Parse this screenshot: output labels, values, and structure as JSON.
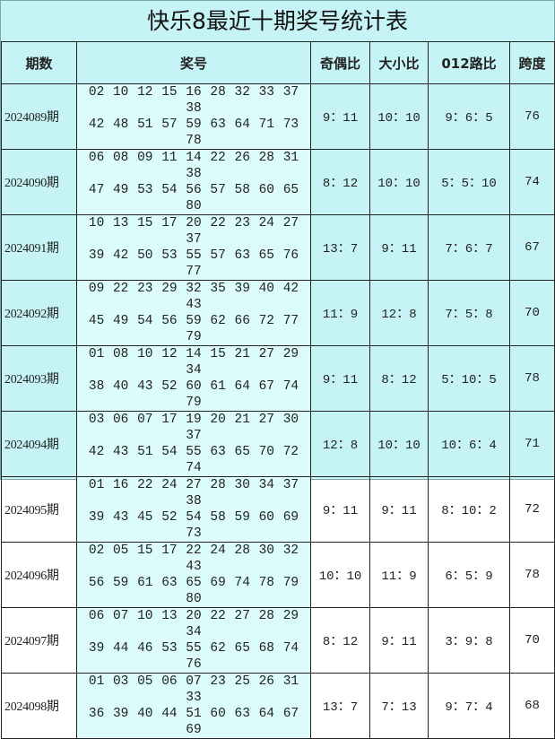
{
  "title": "快乐8最近十期奖号统计表",
  "headers": [
    "期数",
    "奖号",
    "奇偶比",
    "大小比",
    "012路比",
    "跨度"
  ],
  "colors": {
    "background": "#c6f4f6",
    "number_cell": "#dcfcfc",
    "border": "#222222"
  },
  "rows": [
    {
      "period": "2024089期",
      "line1": "02 10 12 15 16 28 32 33 37 38",
      "line2": "42 48 51 57 59 63 64 71 73 78",
      "odd_even": "9：11",
      "big_small": "10：10",
      "road012": "9：6：5",
      "span": "76"
    },
    {
      "period": "2024090期",
      "line1": "06 08 09 11 14 22 26 28 31 38",
      "line2": "47 49 53 54 56 57 58 60 65 80",
      "odd_even": "8：12",
      "big_small": "10：10",
      "road012": "5：5：10",
      "span": "74"
    },
    {
      "period": "2024091期",
      "line1": "10 13 15 17 20 22 23 24 27 37",
      "line2": "39 42 50 53 55 57 63 65 76 77",
      "odd_even": "13：7",
      "big_small": "9：11",
      "road012": "7：6：7",
      "span": "67"
    },
    {
      "period": "2024092期",
      "line1": "09 22 23 29 32 35 39 40 42 43",
      "line2": "45 49 54 56 59 62 66 72 77 79",
      "odd_even": "11：9",
      "big_small": "12：8",
      "road012": "7：5：8",
      "span": "70"
    },
    {
      "period": "2024093期",
      "line1": "01 08 10 12 14 15 21 27 29 34",
      "line2": "38 40 43 52 60 61 64 67 74 79",
      "odd_even": "9：11",
      "big_small": "8：12",
      "road012": "5：10：5",
      "span": "78"
    },
    {
      "period": "2024094期",
      "line1": "03 06 07 17 19 20 21 27 30 37",
      "line2": "42 43 51 54 55 63 65 70 72 74",
      "odd_even": "12：8",
      "big_small": "10：10",
      "road012": "10：6：4",
      "span": "71"
    },
    {
      "period": "2024095期",
      "line1": "01 16 22 24 27 28 30 34 37 38",
      "line2": "39 43 45 52 54 58 59 60 69 73",
      "odd_even": "9：11",
      "big_small": "9：11",
      "road012": "8：10：2",
      "span": "72"
    },
    {
      "period": "2024096期",
      "line1": "02 05 15 17 22 24 28 30 32 43",
      "line2": "56 59 61 63 65 69 74 78 79 80",
      "odd_even": "10：10",
      "big_small": "11：9",
      "road012": "6：5：9",
      "span": "78"
    },
    {
      "period": "2024097期",
      "line1": "06 07 10 13 20 22 27 28 29 34",
      "line2": "39 44 46 53 55 62 65 68 74 76",
      "odd_even": "8：12",
      "big_small": "9：11",
      "road012": "3：9：8",
      "span": "70"
    },
    {
      "period": "2024098期",
      "line1": "01 03 05 06 07 23 25 26 31 33",
      "line2": "36 39 40 44 51 60 63 64 67 69",
      "odd_even": "13：7",
      "big_small": "7：13",
      "road012": "9：7：4",
      "span": "68"
    }
  ]
}
